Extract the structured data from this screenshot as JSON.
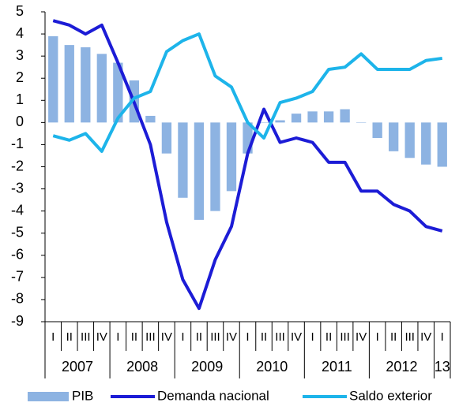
{
  "chart_data": {
    "type": "bar-line",
    "categories": [
      "I",
      "II",
      "III",
      "IV",
      "I",
      "II",
      "III",
      "IV",
      "I",
      "II",
      "III",
      "IV",
      "I",
      "II",
      "III",
      "IV",
      "I",
      "II",
      "III",
      "IV",
      "I",
      "II",
      "III",
      "IV",
      "I"
    ],
    "groups": [
      "2007",
      "2008",
      "2009",
      "2010",
      "2011",
      "2012",
      "13"
    ],
    "series": [
      {
        "name": "PIB",
        "type": "bar",
        "color": "#8db3e2",
        "values": [
          3.9,
          3.5,
          3.4,
          3.1,
          2.7,
          1.9,
          0.3,
          -1.4,
          -3.4,
          -4.4,
          -4.0,
          -3.1,
          -1.4,
          0.0,
          0.1,
          0.4,
          0.5,
          0.5,
          0.6,
          0.0,
          -0.7,
          -1.3,
          -1.6,
          -1.9,
          -2.0
        ]
      },
      {
        "name": "Demanda nacional",
        "type": "line",
        "color": "#1c1cd6",
        "values": [
          4.6,
          4.4,
          4.0,
          4.4,
          2.7,
          0.9,
          -1.0,
          -4.5,
          -7.1,
          -8.4,
          -6.2,
          -4.7,
          -1.4,
          0.6,
          -0.9,
          -0.7,
          -0.9,
          -1.8,
          -1.8,
          -3.1,
          -3.1,
          -3.7,
          -4.0,
          -4.7,
          -4.9
        ]
      },
      {
        "name": "Saldo exterior",
        "type": "line",
        "color": "#1db4ea",
        "values": [
          -0.6,
          -0.8,
          -0.5,
          -1.3,
          0.2,
          1.1,
          1.4,
          3.2,
          3.7,
          4.0,
          2.1,
          1.6,
          0.0,
          -0.7,
          0.9,
          1.1,
          1.4,
          2.4,
          2.5,
          3.1,
          2.4,
          2.4,
          2.4,
          2.8,
          2.9
        ]
      }
    ],
    "ylim": [
      -9,
      5
    ],
    "yticks": [
      -9,
      -8,
      -7,
      -6,
      -5,
      -4,
      -3,
      -2,
      -1,
      0,
      1,
      2,
      3,
      4,
      5
    ]
  }
}
